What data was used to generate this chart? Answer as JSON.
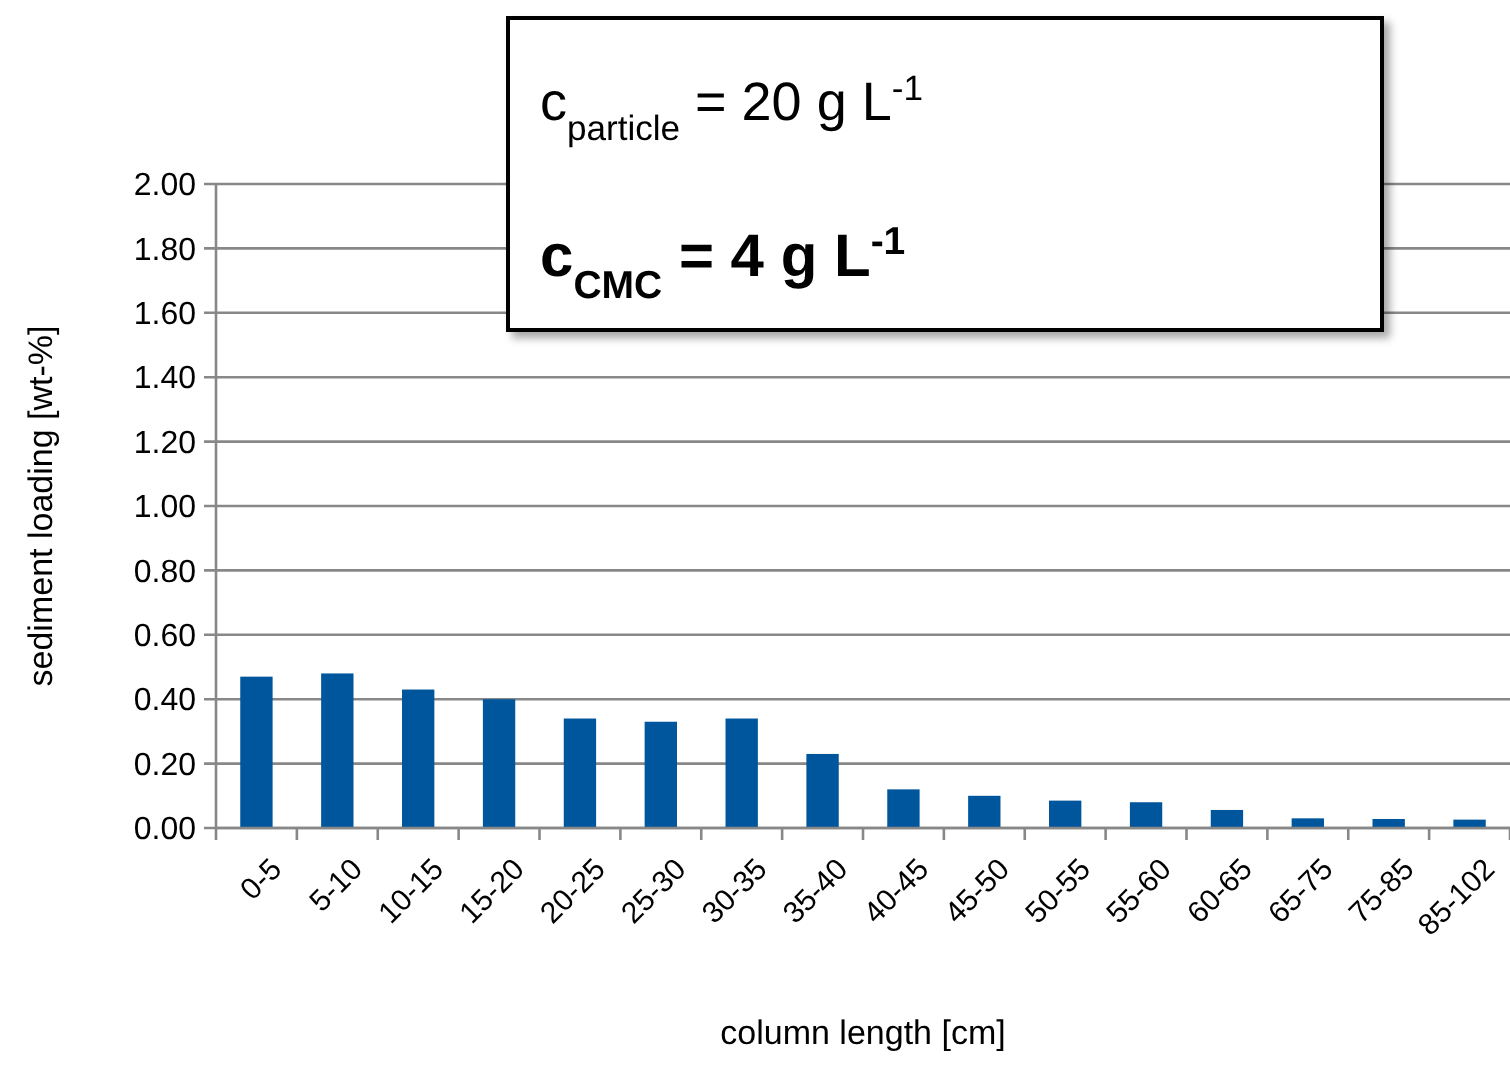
{
  "chart_data": {
    "type": "bar",
    "xlabel": "column length [cm]",
    "ylabel": "sediment loading [wt-%]",
    "categories": [
      "0-5",
      "5-10",
      "10-15",
      "15-20",
      "20-25",
      "25-30",
      "30-35",
      "35-40",
      "40-45",
      "45-50",
      "50-55",
      "55-60",
      "60-65",
      "65-75",
      "75-85",
      "85-102"
    ],
    "values": [
      0.47,
      0.48,
      0.43,
      0.4,
      0.34,
      0.33,
      0.34,
      0.23,
      0.12,
      0.1,
      0.085,
      0.08,
      0.056,
      0.03,
      0.028,
      0.026
    ],
    "color": "#00569c",
    "ylim": [
      0,
      2
    ],
    "yticks": [
      {
        "value": 0,
        "label": "0.00"
      },
      {
        "value": 0.2,
        "label": "0.20"
      },
      {
        "value": 0.4,
        "label": "0.40"
      },
      {
        "value": 0.6,
        "label": "0.60"
      },
      {
        "value": 0.8,
        "label": "0.80"
      },
      {
        "value": 1,
        "label": "1.00"
      },
      {
        "value": 1.2,
        "label": "1.20"
      },
      {
        "value": 1.4,
        "label": "1.40"
      },
      {
        "value": 1.6,
        "label": "1.60"
      },
      {
        "value": 1.8,
        "label": "1.80"
      },
      {
        "value": 2,
        "label": "2.00"
      }
    ],
    "grid": "y",
    "annotations": [
      "c$_{particle}$ = 20 g L$^{-1}$",
      "c$_{CMC}$ = 4 g L$^{-1}$"
    ]
  }
}
